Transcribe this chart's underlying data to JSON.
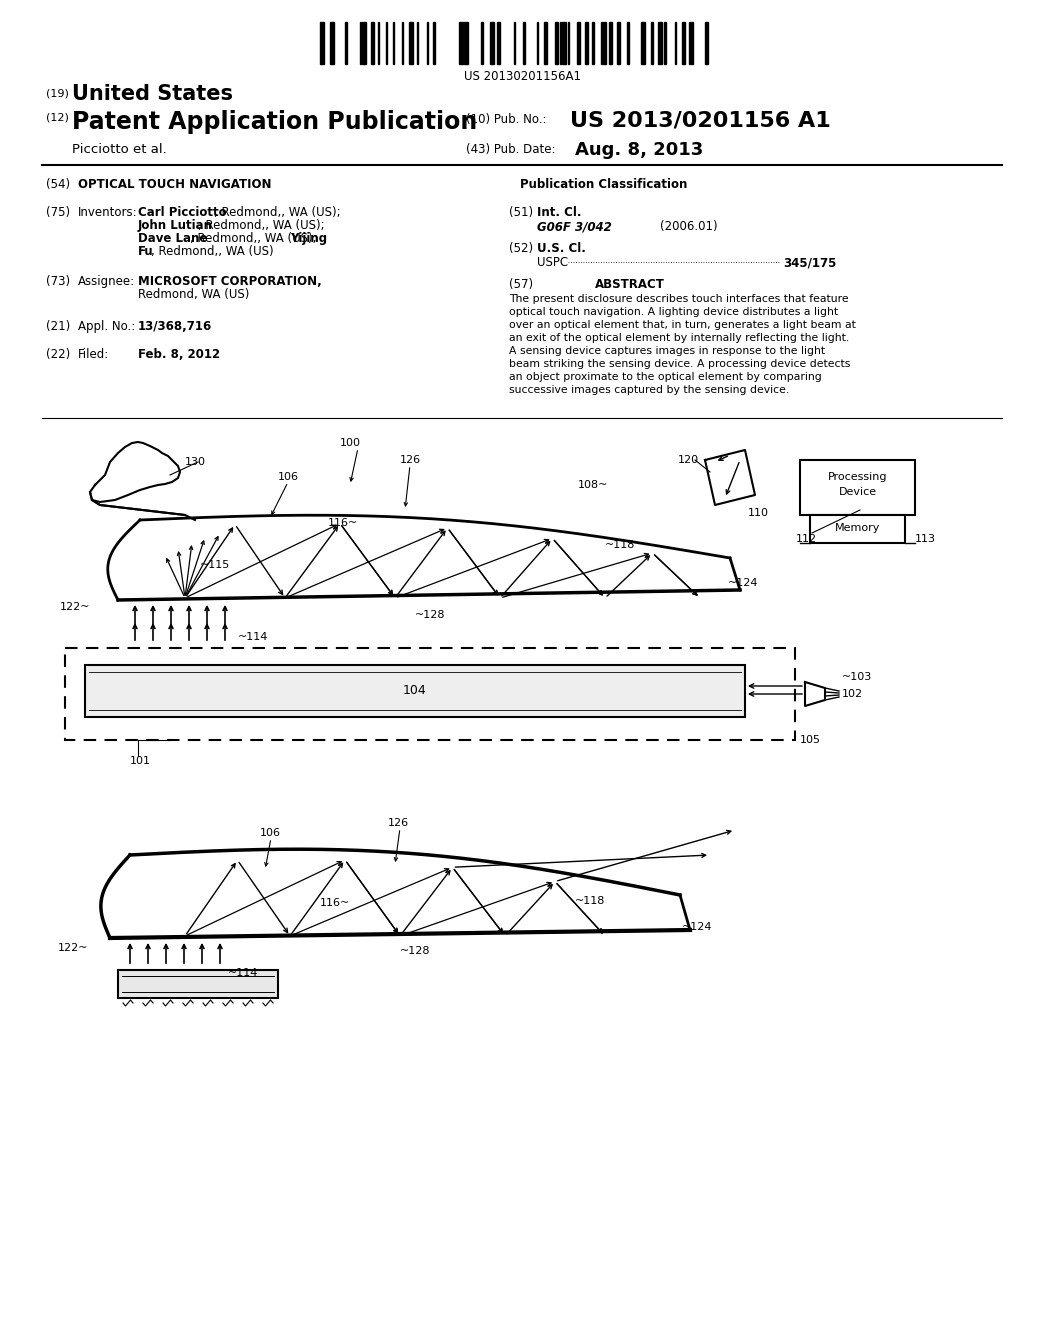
{
  "background_color": "#ffffff",
  "barcode_text": "US 20130201156A1",
  "header_line1_num": "(19)",
  "header_line1_text": "United States",
  "header_line2_num": "(12)",
  "header_line2_text": "Patent Application Publication",
  "header_pub_num_label": "(10) Pub. No.:",
  "header_pub_num_value": "US 2013/0201156 A1",
  "header_author": "Picciotto et al.",
  "header_date_label": "(43) Pub. Date:",
  "header_date_value": "Aug. 8, 2013",
  "section54_num": "(54)",
  "section54_title": "OPTICAL TOUCH NAVIGATION",
  "pub_class_title": "Publication Classification",
  "section51_num": "(51)",
  "section51_label": "Int. Cl.",
  "section51_class": "G06F 3/042",
  "section51_year": "(2006.01)",
  "section52_num": "(52)",
  "section52_label": "U.S. Cl.",
  "section52_value": "345/175",
  "section57_num": "(57)",
  "section57_label": "ABSTRACT",
  "abstract_lines": [
    "The present disclosure describes touch interfaces that feature",
    "optical touch navigation. A lighting device distributes a light",
    "over an optical element that, in turn, generates a light beam at",
    "an exit of the optical element by internally reflecting the light.",
    "A sensing device captures images in response to the light",
    "beam striking the sensing device. A processing device detects",
    "an object proximate to the optical element by comparing",
    "successive images captured by the sensing device."
  ]
}
